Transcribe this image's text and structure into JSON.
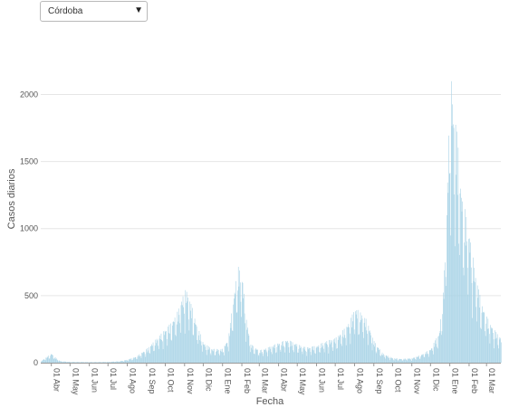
{
  "dropdown": {
    "selected": "Córdoba",
    "arrow_icon": "triangle-down-icon"
  },
  "chart_data": {
    "type": "bar",
    "title": "",
    "xlabel": "Fecha",
    "ylabel": "Casos diarios",
    "ylim": [
      0,
      2300
    ],
    "yticks": [
      0,
      500,
      1000,
      1500,
      2000
    ],
    "grid": true,
    "bar_color": "#a8d3e6",
    "x_start": "2020-03-15",
    "x_end": "2022-03-24",
    "xtick_labels": [
      "01 Abr",
      "01 May",
      "01 Jun",
      "01 Jul",
      "01 Ago",
      "01 Sep",
      "01 Oct",
      "01 Nov",
      "01 Dic",
      "01 Ene",
      "01 Feb",
      "01 Mar",
      "01 Abr",
      "01 May",
      "01 Jun",
      "01 Jul",
      "01 Ago",
      "01 Sep",
      "01 Oct",
      "01 Nov",
      "01 Dic",
      "01 Ene",
      "01 Feb",
      "01 Mar"
    ],
    "xtick_dates": [
      "2020-04-01",
      "2020-05-01",
      "2020-06-01",
      "2020-07-01",
      "2020-08-01",
      "2020-09-01",
      "2020-10-01",
      "2020-11-01",
      "2020-12-01",
      "2021-01-01",
      "2021-02-01",
      "2021-03-01",
      "2021-04-01",
      "2021-05-01",
      "2021-06-01",
      "2021-07-01",
      "2021-08-01",
      "2021-09-01",
      "2021-10-01",
      "2021-11-01",
      "2021-12-01",
      "2022-01-01",
      "2022-02-01",
      "2022-03-01"
    ],
    "series": [
      {
        "dates": [
          "2020-03-15",
          "2020-03-25",
          "2020-04-01",
          "2020-04-08",
          "2020-04-15",
          "2020-05-01",
          "2020-06-01",
          "2020-07-01",
          "2020-07-20",
          "2020-08-01",
          "2020-08-15",
          "2020-09-01",
          "2020-09-15",
          "2020-10-01",
          "2020-10-10",
          "2020-10-20",
          "2020-10-28",
          "2020-11-03",
          "2020-11-10",
          "2020-11-20",
          "2020-12-01",
          "2020-12-15",
          "2021-01-01",
          "2021-01-10",
          "2021-01-18",
          "2021-01-25",
          "2021-02-01",
          "2021-02-08",
          "2021-02-15",
          "2021-03-01",
          "2021-03-15",
          "2021-04-01",
          "2021-04-15",
          "2021-05-01",
          "2021-05-15",
          "2021-06-01",
          "2021-06-15",
          "2021-07-01",
          "2021-07-15",
          "2021-07-25",
          "2021-08-01",
          "2021-08-10",
          "2021-08-20",
          "2021-09-01",
          "2021-09-15",
          "2021-10-01",
          "2021-10-15",
          "2021-11-01",
          "2021-11-15",
          "2021-12-01",
          "2021-12-15",
          "2021-12-22",
          "2021-12-28",
          "2022-01-02",
          "2022-01-06",
          "2022-01-12",
          "2022-01-20",
          "2022-02-01",
          "2022-02-10",
          "2022-02-20",
          "2022-03-01",
          "2022-03-12",
          "2022-03-24"
        ],
        "values": [
          10,
          40,
          60,
          30,
          10,
          5,
          4,
          5,
          10,
          20,
          40,
          90,
          150,
          220,
          260,
          330,
          430,
          480,
          400,
          250,
          130,
          90,
          90,
          160,
          420,
          630,
          580,
          280,
          120,
          80,
          100,
          130,
          150,
          120,
          100,
          110,
          140,
          160,
          220,
          280,
          360,
          330,
          280,
          140,
          60,
          30,
          25,
          30,
          50,
          90,
          200,
          500,
          1200,
          1900,
          1700,
          1500,
          1100,
          850,
          600,
          400,
          300,
          220,
          160
        ]
      }
    ]
  }
}
